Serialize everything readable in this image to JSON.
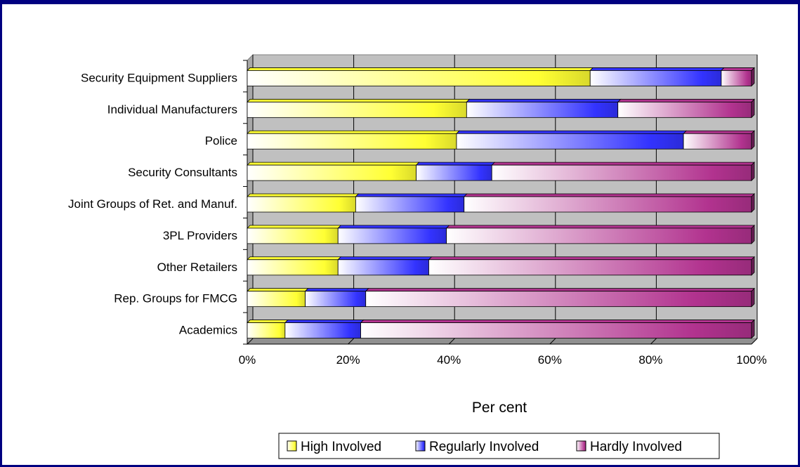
{
  "chart_data": {
    "type": "bar",
    "orientation": "horizontal",
    "stacked": "percent",
    "title": "",
    "xlabel": "Per cent",
    "ylabel": "",
    "xlim": [
      0,
      100
    ],
    "x_ticks": [
      "0%",
      "20%",
      "40%",
      "60%",
      "80%",
      "100%"
    ],
    "grid": true,
    "legend_position": "bottom",
    "categories": [
      "Security Equipment Suppliers",
      "Individual Manufacturers",
      "Police",
      "Security Consultants",
      "Joint Groups of Ret. and Manuf.",
      "3PL Providers",
      "Other Retailers",
      "Rep. Groups for FMCG",
      "Academics"
    ],
    "series": [
      {
        "name": "High Involved",
        "color": "#ffff33",
        "values": [
          68,
          43.5,
          41.5,
          33.5,
          21.5,
          18,
          18,
          11.5,
          7.5
        ]
      },
      {
        "name": "Regularly Involved",
        "color": "#3333ff",
        "values": [
          26,
          30,
          45,
          15,
          21.5,
          21.5,
          18,
          12,
          15
        ]
      },
      {
        "name": "Hardly Involved",
        "color": "#b2338f",
        "values": [
          6,
          26.5,
          13.5,
          51.5,
          57,
          60.5,
          64,
          76.5,
          77.5
        ]
      }
    ]
  }
}
